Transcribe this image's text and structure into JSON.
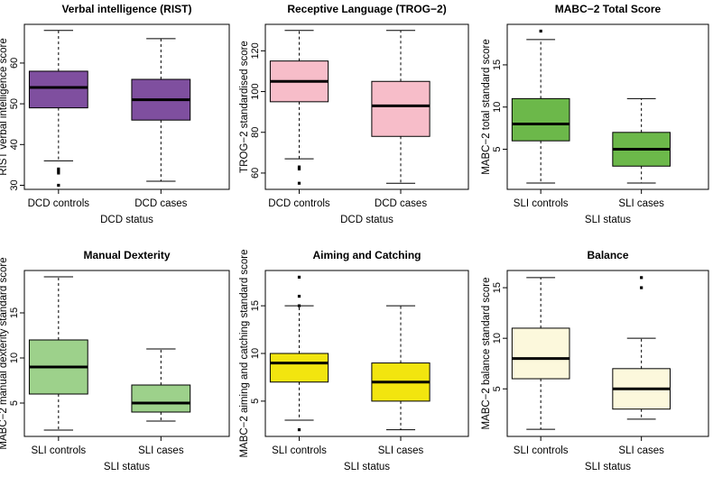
{
  "figure_title": "Six boxplot panels comparing DCD and SLI groups",
  "chart_data": [
    {
      "type": "boxplot",
      "title": "Verbal intelligence (RIST)",
      "xlabel": "DCD status",
      "ylabel": "RIST verbal intelligence score",
      "ylim": [
        29,
        69.5
      ],
      "yticks": [
        30,
        40,
        50,
        60
      ],
      "categories": [
        "DCD controls",
        "DCD cases"
      ],
      "fill_color": "#7f4f9f",
      "boxes": [
        {
          "min": 36,
          "q1": 49,
          "median": 54,
          "q3": 58,
          "max": 68,
          "outliers": [
            34,
            33.5,
            33,
            30
          ]
        },
        {
          "min": 31,
          "q1": 46,
          "median": 51,
          "q3": 56,
          "max": 66,
          "outliers": []
        }
      ]
    },
    {
      "type": "boxplot",
      "title": "Receptive Language (TROG−2)",
      "xlabel": "DCD status",
      "ylabel": "TROG−2 standardised score",
      "ylim": [
        52,
        133
      ],
      "yticks": [
        60,
        80,
        100,
        120
      ],
      "categories": [
        "DCD controls",
        "DCD cases"
      ],
      "fill_color": "#f7bdc9",
      "boxes": [
        {
          "min": 67,
          "q1": 95,
          "median": 105,
          "q3": 115,
          "max": 130,
          "outliers": [
            63,
            62,
            55
          ]
        },
        {
          "min": 55,
          "q1": 78,
          "median": 93,
          "q3": 105,
          "max": 130,
          "outliers": []
        }
      ]
    },
    {
      "type": "boxplot",
      "title": "MABC−2 Total Score",
      "xlabel": "SLI status",
      "ylabel": "MABC−2 total standard score",
      "ylim": [
        0.25,
        19.8
      ],
      "yticks": [
        5,
        10,
        15
      ],
      "categories": [
        "SLI controls",
        "SLI cases"
      ],
      "fill_color": "#6cb84a",
      "boxes": [
        {
          "min": 1,
          "q1": 6,
          "median": 8,
          "q3": 11,
          "max": 18,
          "outliers": [
            19
          ]
        },
        {
          "min": 1,
          "q1": 3,
          "median": 5,
          "q3": 7,
          "max": 11,
          "outliers": []
        }
      ]
    },
    {
      "type": "boxplot",
      "title": "Manual Dexterity",
      "xlabel": "SLI status",
      "ylabel": "MABC−2 manual dexterity standard score",
      "ylim": [
        1.3,
        19.7
      ],
      "yticks": [
        5,
        10,
        15
      ],
      "categories": [
        "SLI controls",
        "SLI cases"
      ],
      "fill_color": "#9dd18b",
      "boxes": [
        {
          "min": 2,
          "q1": 6,
          "median": 9,
          "q3": 12,
          "max": 19,
          "outliers": []
        },
        {
          "min": 3,
          "q1": 4,
          "median": 5,
          "q3": 7,
          "max": 11,
          "outliers": []
        }
      ]
    },
    {
      "type": "boxplot",
      "title": "Aiming and Catching",
      "xlabel": "SLI status",
      "ylabel": "MABC−2 aiming and catching standard score",
      "ylim": [
        1.3,
        18.7
      ],
      "yticks": [
        5,
        10,
        15
      ],
      "categories": [
        "SLI controls",
        "SLI cases"
      ],
      "fill_color": "#f2e50f",
      "boxes": [
        {
          "min": 3,
          "q1": 7,
          "median": 9,
          "q3": 10,
          "max": 15,
          "outliers": [
            18,
            16,
            15,
            2
          ]
        },
        {
          "min": 2,
          "q1": 5,
          "median": 7,
          "q3": 9,
          "max": 15,
          "outliers": []
        }
      ]
    },
    {
      "type": "boxplot",
      "title": "Balance",
      "xlabel": "SLI status",
      "ylabel": "MABC−2 balance standard score",
      "ylim": [
        0.3,
        16.7
      ],
      "yticks": [
        5,
        10,
        15
      ],
      "categories": [
        "SLI controls",
        "SLI cases"
      ],
      "fill_color": "#fcf8dc",
      "boxes": [
        {
          "min": 1,
          "q1": 6,
          "median": 8,
          "q3": 11,
          "max": 16,
          "outliers": []
        },
        {
          "min": 2,
          "q1": 3,
          "median": 5,
          "q3": 7,
          "max": 10,
          "outliers": [
            16,
            15
          ]
        }
      ]
    }
  ]
}
